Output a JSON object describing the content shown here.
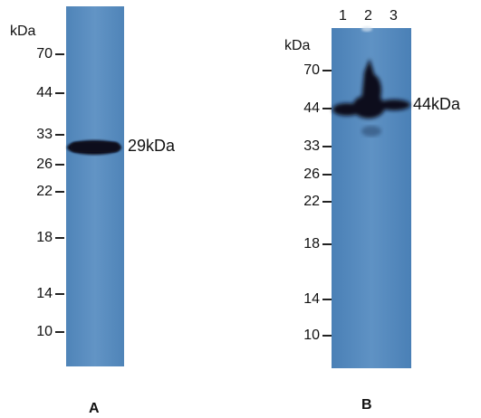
{
  "panel_a": {
    "unit": "kDa",
    "markers": [
      "70",
      "44",
      "33",
      "26",
      "22",
      "18",
      "14",
      "10"
    ],
    "band_label": "29kDa",
    "letter": "A"
  },
  "panel_b": {
    "unit": "kDa",
    "lanes": [
      "1",
      "2",
      "3"
    ],
    "markers": [
      "70",
      "44",
      "33",
      "26",
      "22",
      "18",
      "14",
      "10"
    ],
    "band_label": "44kDa",
    "letter": "B"
  },
  "colors": {
    "membrane": "#5a8cbe",
    "band": "#0a0f1a"
  }
}
